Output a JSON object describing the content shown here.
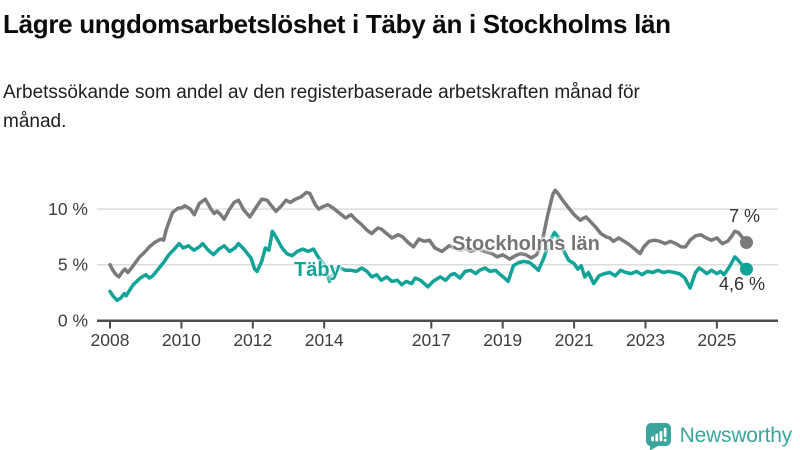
{
  "header": {
    "title": "Lägre ungdomsarbetslöshet i Täby än i Stockholms län",
    "subtitle": "Arbetssökande som andel av den registerbaserade arbetskraften månad för månad."
  },
  "chart_data": {
    "type": "line",
    "unit": "percent of registered labour force",
    "grid": "horizontal",
    "x_axis": {
      "ticks": [
        2008,
        2010,
        2012,
        2014,
        2017,
        2019,
        2021,
        2023,
        2025
      ],
      "range": [
        2008,
        2025.9
      ]
    },
    "y_axis": {
      "ticks": [
        {
          "value": 0,
          "label": "0 %"
        },
        {
          "value": 5,
          "label": "5 %"
        },
        {
          "value": 10,
          "label": "10 %"
        }
      ],
      "range": [
        0,
        12
      ]
    },
    "series": [
      {
        "name": "Stockholms län",
        "color": "#7a7a7a",
        "end_label": "7 %",
        "end_value": 7.0,
        "points": [
          [
            2008.0,
            5.0
          ],
          [
            2008.08,
            4.5
          ],
          [
            2008.17,
            4.1
          ],
          [
            2008.25,
            3.9
          ],
          [
            2008.33,
            4.3
          ],
          [
            2008.42,
            4.6
          ],
          [
            2008.5,
            4.3
          ],
          [
            2008.58,
            4.6
          ],
          [
            2008.67,
            5.0
          ],
          [
            2008.83,
            5.7
          ],
          [
            2008.96,
            6.1
          ],
          [
            2009.1,
            6.6
          ],
          [
            2009.25,
            7.0
          ],
          [
            2009.42,
            7.3
          ],
          [
            2009.5,
            7.2
          ],
          [
            2009.58,
            8.2
          ],
          [
            2009.75,
            9.7
          ],
          [
            2009.92,
            10.1
          ],
          [
            2010.0,
            10.1
          ],
          [
            2010.1,
            10.3
          ],
          [
            2010.25,
            10.0
          ],
          [
            2010.36,
            9.5
          ],
          [
            2010.5,
            10.5
          ],
          [
            2010.67,
            10.9
          ],
          [
            2010.83,
            10.0
          ],
          [
            2010.92,
            9.6
          ],
          [
            2011.0,
            9.8
          ],
          [
            2011.1,
            9.5
          ],
          [
            2011.2,
            9.1
          ],
          [
            2011.33,
            9.9
          ],
          [
            2011.48,
            10.6
          ],
          [
            2011.6,
            10.8
          ],
          [
            2011.75,
            9.9
          ],
          [
            2011.92,
            9.3
          ],
          [
            2012.08,
            10.1
          ],
          [
            2012.25,
            10.9
          ],
          [
            2012.4,
            10.8
          ],
          [
            2012.55,
            10.2
          ],
          [
            2012.65,
            9.8
          ],
          [
            2012.8,
            10.3
          ],
          [
            2012.93,
            10.8
          ],
          [
            2013.05,
            10.6
          ],
          [
            2013.2,
            10.9
          ],
          [
            2013.35,
            11.1
          ],
          [
            2013.5,
            11.5
          ],
          [
            2013.6,
            11.4
          ],
          [
            2013.75,
            10.4
          ],
          [
            2013.85,
            10.0
          ],
          [
            2013.95,
            10.2
          ],
          [
            2014.1,
            10.4
          ],
          [
            2014.25,
            10.1
          ],
          [
            2014.4,
            9.7
          ],
          [
            2014.6,
            9.2
          ],
          [
            2014.75,
            9.5
          ],
          [
            2014.9,
            9.0
          ],
          [
            2015.05,
            8.6
          ],
          [
            2015.2,
            8.1
          ],
          [
            2015.33,
            7.8
          ],
          [
            2015.5,
            8.3
          ],
          [
            2015.6,
            8.2
          ],
          [
            2015.75,
            7.8
          ],
          [
            2015.9,
            7.4
          ],
          [
            2016.07,
            7.7
          ],
          [
            2016.2,
            7.5
          ],
          [
            2016.35,
            7.0
          ],
          [
            2016.5,
            6.6
          ],
          [
            2016.65,
            7.3
          ],
          [
            2016.8,
            7.1
          ],
          [
            2016.95,
            7.2
          ],
          [
            2017.1,
            6.5
          ],
          [
            2017.3,
            6.2
          ],
          [
            2017.5,
            6.7
          ],
          [
            2017.65,
            6.5
          ],
          [
            2017.8,
            6.3
          ],
          [
            2017.95,
            6.5
          ],
          [
            2018.1,
            6.2
          ],
          [
            2018.3,
            6.4
          ],
          [
            2018.5,
            6.2
          ],
          [
            2018.7,
            6.0
          ],
          [
            2018.85,
            5.7
          ],
          [
            2019.0,
            5.9
          ],
          [
            2019.2,
            5.5
          ],
          [
            2019.35,
            5.8
          ],
          [
            2019.5,
            6.0
          ],
          [
            2019.65,
            5.9
          ],
          [
            2019.8,
            5.6
          ],
          [
            2019.95,
            5.9
          ],
          [
            2020.1,
            7.0
          ],
          [
            2020.25,
            9.3
          ],
          [
            2020.4,
            11.3
          ],
          [
            2020.47,
            11.7
          ],
          [
            2020.55,
            11.4
          ],
          [
            2020.7,
            10.7
          ],
          [
            2020.85,
            10.1
          ],
          [
            2021.0,
            9.5
          ],
          [
            2021.17,
            9.0
          ],
          [
            2021.33,
            9.3
          ],
          [
            2021.45,
            8.9
          ],
          [
            2021.6,
            8.4
          ],
          [
            2021.75,
            7.8
          ],
          [
            2021.9,
            7.5
          ],
          [
            2022.0,
            7.4
          ],
          [
            2022.1,
            7.1
          ],
          [
            2022.25,
            7.4
          ],
          [
            2022.4,
            7.1
          ],
          [
            2022.55,
            6.8
          ],
          [
            2022.7,
            6.4
          ],
          [
            2022.85,
            6.0
          ],
          [
            2022.95,
            6.6
          ],
          [
            2023.1,
            7.1
          ],
          [
            2023.25,
            7.2
          ],
          [
            2023.4,
            7.1
          ],
          [
            2023.55,
            6.9
          ],
          [
            2023.7,
            7.1
          ],
          [
            2023.85,
            6.9
          ],
          [
            2024.0,
            6.6
          ],
          [
            2024.12,
            6.6
          ],
          [
            2024.25,
            7.2
          ],
          [
            2024.4,
            7.6
          ],
          [
            2024.55,
            7.7
          ],
          [
            2024.7,
            7.4
          ],
          [
            2024.85,
            7.2
          ],
          [
            2025.0,
            7.4
          ],
          [
            2025.15,
            6.9
          ],
          [
            2025.3,
            7.1
          ],
          [
            2025.4,
            7.5
          ],
          [
            2025.5,
            8.0
          ],
          [
            2025.6,
            7.9
          ],
          [
            2025.7,
            7.5
          ],
          [
            2025.83,
            7.0
          ]
        ]
      },
      {
        "name": "Täby",
        "color": "#10a398",
        "end_label": "4,6 %",
        "end_value": 4.6,
        "points": [
          [
            2008.0,
            2.6
          ],
          [
            2008.08,
            2.2
          ],
          [
            2008.2,
            1.8
          ],
          [
            2008.3,
            2.0
          ],
          [
            2008.4,
            2.4
          ],
          [
            2008.45,
            2.2
          ],
          [
            2008.55,
            2.7
          ],
          [
            2008.65,
            3.2
          ],
          [
            2008.75,
            3.5
          ],
          [
            2008.85,
            3.8
          ],
          [
            2009.0,
            4.1
          ],
          [
            2009.1,
            3.8
          ],
          [
            2009.2,
            4.0
          ],
          [
            2009.3,
            4.4
          ],
          [
            2009.4,
            4.8
          ],
          [
            2009.5,
            5.2
          ],
          [
            2009.65,
            5.9
          ],
          [
            2009.8,
            6.4
          ],
          [
            2009.94,
            6.9
          ],
          [
            2010.05,
            6.5
          ],
          [
            2010.2,
            6.7
          ],
          [
            2010.35,
            6.3
          ],
          [
            2010.5,
            6.6
          ],
          [
            2010.6,
            6.9
          ],
          [
            2010.75,
            6.3
          ],
          [
            2010.9,
            5.9
          ],
          [
            2011.05,
            6.4
          ],
          [
            2011.2,
            6.7
          ],
          [
            2011.35,
            6.2
          ],
          [
            2011.5,
            6.5
          ],
          [
            2011.6,
            6.9
          ],
          [
            2011.75,
            6.4
          ],
          [
            2011.85,
            6.0
          ],
          [
            2011.95,
            5.6
          ],
          [
            2012.05,
            4.6
          ],
          [
            2012.12,
            4.4
          ],
          [
            2012.25,
            5.3
          ],
          [
            2012.35,
            6.5
          ],
          [
            2012.45,
            6.3
          ],
          [
            2012.55,
            8.0
          ],
          [
            2012.65,
            7.5
          ],
          [
            2012.8,
            6.6
          ],
          [
            2012.95,
            6.0
          ],
          [
            2013.1,
            5.8
          ],
          [
            2013.25,
            6.2
          ],
          [
            2013.4,
            6.4
          ],
          [
            2013.55,
            6.2
          ],
          [
            2013.7,
            6.4
          ],
          [
            2013.85,
            5.6
          ],
          [
            2014.0,
            5.0
          ],
          [
            2014.15,
            3.5
          ],
          [
            2014.3,
            4.6
          ],
          [
            2014.45,
            4.7
          ],
          [
            2014.6,
            4.5
          ],
          [
            2014.75,
            4.5
          ],
          [
            2014.9,
            4.4
          ],
          [
            2015.05,
            4.7
          ],
          [
            2015.2,
            4.4
          ],
          [
            2015.33,
            3.9
          ],
          [
            2015.47,
            4.1
          ],
          [
            2015.6,
            3.6
          ],
          [
            2015.75,
            3.9
          ],
          [
            2015.9,
            3.5
          ],
          [
            2016.05,
            3.6
          ],
          [
            2016.17,
            3.2
          ],
          [
            2016.3,
            3.5
          ],
          [
            2016.45,
            3.3
          ],
          [
            2016.55,
            3.8
          ],
          [
            2016.7,
            3.6
          ],
          [
            2016.8,
            3.3
          ],
          [
            2016.9,
            3.0
          ],
          [
            2017.05,
            3.5
          ],
          [
            2017.25,
            3.9
          ],
          [
            2017.4,
            3.6
          ],
          [
            2017.55,
            4.1
          ],
          [
            2017.65,
            4.2
          ],
          [
            2017.8,
            3.8
          ],
          [
            2017.95,
            4.4
          ],
          [
            2018.1,
            4.5
          ],
          [
            2018.25,
            4.2
          ],
          [
            2018.35,
            4.5
          ],
          [
            2018.5,
            4.7
          ],
          [
            2018.65,
            4.4
          ],
          [
            2018.8,
            4.5
          ],
          [
            2018.9,
            4.2
          ],
          [
            2019.05,
            3.8
          ],
          [
            2019.15,
            3.5
          ],
          [
            2019.3,
            4.9
          ],
          [
            2019.45,
            5.2
          ],
          [
            2019.6,
            5.3
          ],
          [
            2019.75,
            5.2
          ],
          [
            2019.9,
            4.8
          ],
          [
            2020.0,
            4.5
          ],
          [
            2020.15,
            5.6
          ],
          [
            2020.3,
            7.0
          ],
          [
            2020.45,
            7.9
          ],
          [
            2020.55,
            7.5
          ],
          [
            2020.7,
            6.3
          ],
          [
            2020.85,
            5.4
          ],
          [
            2021.0,
            5.1
          ],
          [
            2021.1,
            4.6
          ],
          [
            2021.2,
            4.9
          ],
          [
            2021.3,
            3.9
          ],
          [
            2021.4,
            4.3
          ],
          [
            2021.55,
            3.3
          ],
          [
            2021.7,
            4.0
          ],
          [
            2021.85,
            4.2
          ],
          [
            2022.0,
            4.3
          ],
          [
            2022.15,
            4.0
          ],
          [
            2022.3,
            4.5
          ],
          [
            2022.45,
            4.3
          ],
          [
            2022.6,
            4.2
          ],
          [
            2022.75,
            4.4
          ],
          [
            2022.9,
            4.1
          ],
          [
            2023.05,
            4.4
          ],
          [
            2023.2,
            4.3
          ],
          [
            2023.35,
            4.5
          ],
          [
            2023.5,
            4.3
          ],
          [
            2023.65,
            4.4
          ],
          [
            2023.8,
            4.3
          ],
          [
            2023.95,
            4.2
          ],
          [
            2024.1,
            3.8
          ],
          [
            2024.25,
            2.9
          ],
          [
            2024.4,
            4.3
          ],
          [
            2024.5,
            4.7
          ],
          [
            2024.6,
            4.5
          ],
          [
            2024.72,
            4.2
          ],
          [
            2024.85,
            4.5
          ],
          [
            2025.0,
            4.2
          ],
          [
            2025.1,
            4.4
          ],
          [
            2025.2,
            4.1
          ],
          [
            2025.35,
            4.8
          ],
          [
            2025.5,
            5.7
          ],
          [
            2025.6,
            5.4
          ],
          [
            2025.7,
            5.0
          ],
          [
            2025.83,
            4.6
          ]
        ]
      }
    ]
  },
  "footer": {
    "brand": "Newsworthy"
  },
  "colors": {
    "taby": "#10a398",
    "stockholm": "#7a7a7a",
    "logo": "#3ba59d",
    "grid": "#dcdcdc",
    "axis": "#4d4d4d",
    "tick_text": "#3d3d3d"
  }
}
